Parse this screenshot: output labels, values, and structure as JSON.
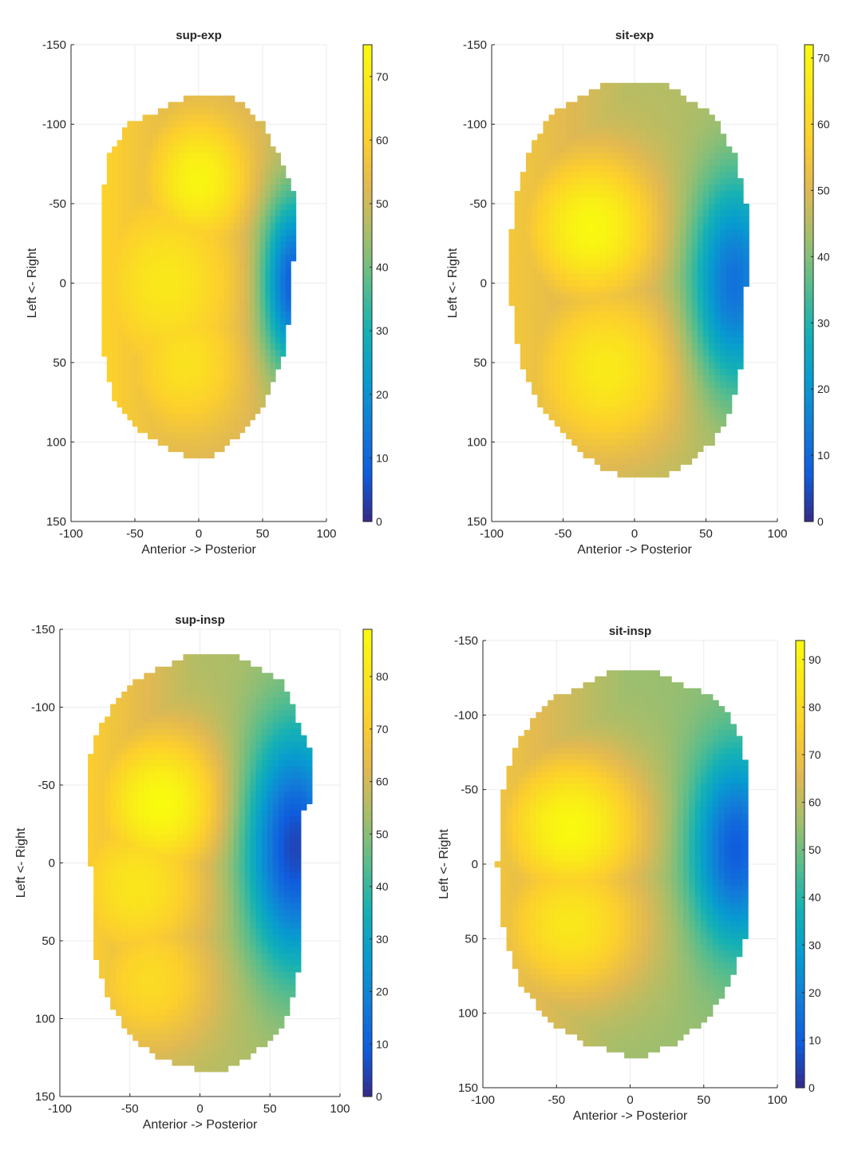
{
  "figure": {
    "description_free": true
  },
  "chart_data": [
    {
      "type": "heatmap",
      "title": "sup-exp",
      "xlabel": "Anterior -> Posterior",
      "ylabel": "Left <- Right",
      "xlim": [
        -100,
        100
      ],
      "ylim": [
        -150,
        150
      ],
      "y_reversed": true,
      "xticks": [
        -100,
        -50,
        0,
        50,
        100
      ],
      "yticks": [
        -150,
        -100,
        -50,
        0,
        50,
        100,
        150
      ],
      "grid": true,
      "colorbar": {
        "min": 0,
        "max": 75,
        "ticks": [
          0,
          10,
          20,
          30,
          40,
          50,
          60,
          70
        ]
      },
      "shape": {
        "y_profile": [
          [
            -119,
            -5,
            25
          ],
          [
            -100,
            -55,
            50
          ],
          [
            -80,
            -72,
            62
          ],
          [
            -55,
            -75,
            76
          ],
          [
            -40,
            -75,
            76
          ],
          [
            0,
            -75,
            73
          ],
          [
            40,
            -75,
            68
          ],
          [
            70,
            -68,
            55
          ],
          [
            90,
            -50,
            40
          ],
          [
            105,
            -20,
            18
          ],
          [
            111,
            0,
            5
          ]
        ]
      },
      "hotspots": [
        {
          "x": 0,
          "y": -65,
          "value": 73,
          "spread": 30
        },
        {
          "x": -25,
          "y": 0,
          "value": 68,
          "spread": 45
        },
        {
          "x": -10,
          "y": 50,
          "value": 66,
          "spread": 35
        }
      ],
      "cold_spots": [
        {
          "x": 75,
          "y": 0,
          "value": 8,
          "spread": 25
        }
      ],
      "base_value": 50,
      "gradient_x": -0.15
    },
    {
      "type": "heatmap",
      "title": "sit-exp",
      "xlabel": "Anterior -> Posterior",
      "ylabel": "Left <- Right",
      "xlim": [
        -100,
        100
      ],
      "ylim": [
        -150,
        150
      ],
      "y_reversed": true,
      "xticks": [
        -100,
        -50,
        0,
        50,
        100
      ],
      "yticks": [
        -150,
        -100,
        -50,
        0,
        50,
        100,
        150
      ],
      "grid": true,
      "colorbar": {
        "min": 0,
        "max": 72,
        "ticks": [
          0,
          10,
          20,
          30,
          40,
          50,
          60,
          70
        ]
      },
      "shape": {
        "y_profile": [
          [
            -124,
            -25,
            25
          ],
          [
            -105,
            -60,
            55
          ],
          [
            -80,
            -75,
            70
          ],
          [
            -50,
            -85,
            78
          ],
          [
            0,
            -88,
            78
          ],
          [
            50,
            -80,
            75
          ],
          [
            80,
            -65,
            68
          ],
          [
            100,
            -45,
            55
          ],
          [
            115,
            -25,
            35
          ],
          [
            123,
            -5,
            15
          ]
        ]
      },
      "hotspots": [
        {
          "x": -30,
          "y": -35,
          "value": 71,
          "spread": 35
        },
        {
          "x": -20,
          "y": 55,
          "value": 66,
          "spread": 40
        }
      ],
      "cold_spots": [
        {
          "x": 70,
          "y": 0,
          "value": 12,
          "spread": 30
        }
      ],
      "base_value": 45,
      "gradient_x": -0.12
    },
    {
      "type": "heatmap",
      "title": "sup-insp",
      "xlabel": "Anterior -> Posterior",
      "ylabel": "Left <- Right",
      "xlim": [
        -100,
        100
      ],
      "ylim": [
        -150,
        150
      ],
      "y_reversed": true,
      "xticks": [
        -100,
        -50,
        0,
        50,
        100
      ],
      "yticks": [
        -150,
        -100,
        -50,
        0,
        50,
        100,
        150
      ],
      "grid": true,
      "colorbar": {
        "min": 0,
        "max": 89,
        "ticks": [
          0,
          10,
          20,
          30,
          40,
          50,
          60,
          70,
          80
        ]
      },
      "shape": {
        "y_profile": [
          [
            -133,
            -10,
            25
          ],
          [
            -115,
            -50,
            60
          ],
          [
            -90,
            -70,
            70
          ],
          [
            -70,
            -78,
            80
          ],
          [
            -40,
            -78,
            80
          ],
          [
            -30,
            -78,
            72
          ],
          [
            0,
            -78,
            72
          ],
          [
            60,
            -75,
            72
          ],
          [
            90,
            -65,
            65
          ],
          [
            110,
            -50,
            55
          ],
          [
            125,
            -30,
            35
          ],
          [
            134,
            5,
            15
          ]
        ]
      },
      "hotspots": [
        {
          "x": -28,
          "y": -38,
          "value": 89,
          "spread": 35
        },
        {
          "x": -45,
          "y": 15,
          "value": 80,
          "spread": 40
        },
        {
          "x": -35,
          "y": 75,
          "value": 76,
          "spread": 35
        }
      ],
      "cold_spots": [
        {
          "x": 68,
          "y": -10,
          "value": 5,
          "spread": 35
        }
      ],
      "base_value": 55,
      "gradient_x": -0.2
    },
    {
      "type": "heatmap",
      "title": "sit-insp",
      "xlabel": "Anterior -> Posterior",
      "ylabel": "Left <- Right",
      "xlim": [
        -100,
        100
      ],
      "ylim": [
        -150,
        150
      ],
      "y_reversed": true,
      "xticks": [
        -100,
        -50,
        0,
        50,
        100
      ],
      "yticks": [
        -150,
        -100,
        -50,
        0,
        50,
        100,
        150
      ],
      "grid": true,
      "colorbar": {
        "min": 0,
        "max": 94,
        "ticks": [
          0,
          10,
          20,
          30,
          40,
          50,
          60,
          70,
          80,
          90
        ]
      },
      "shape": {
        "y_profile": [
          [
            -128,
            -15,
            20
          ],
          [
            -110,
            -55,
            60
          ],
          [
            -85,
            -75,
            75
          ],
          [
            -60,
            -85,
            80
          ],
          [
            -30,
            -88,
            80
          ],
          [
            0,
            -90,
            80
          ],
          [
            50,
            -85,
            78
          ],
          [
            80,
            -75,
            68
          ],
          [
            105,
            -55,
            52
          ],
          [
            120,
            -30,
            30
          ],
          [
            128,
            -5,
            12
          ]
        ]
      },
      "hotspots": [
        {
          "x": -40,
          "y": -25,
          "value": 93,
          "spread": 38
        },
        {
          "x": -40,
          "y": 40,
          "value": 85,
          "spread": 40
        }
      ],
      "cold_spots": [
        {
          "x": 72,
          "y": -10,
          "value": 10,
          "spread": 30
        }
      ],
      "base_value": 55,
      "gradient_x": -0.18
    }
  ]
}
